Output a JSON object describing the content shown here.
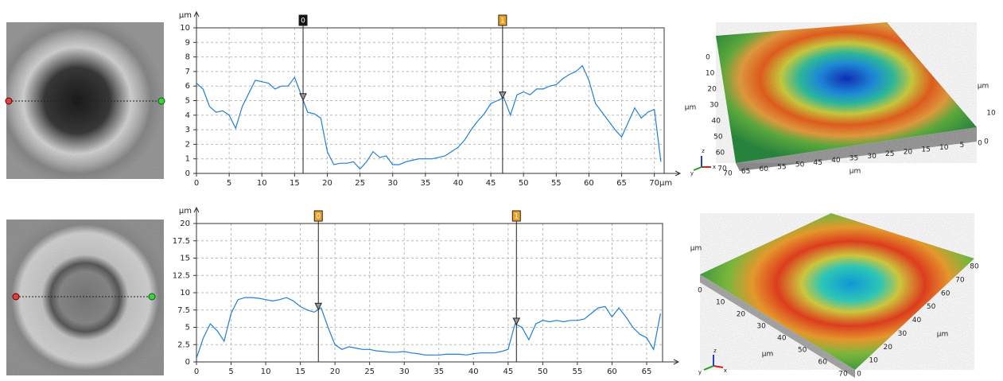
{
  "chart_data": [
    {
      "type": "line",
      "color": "#1f7fd6",
      "ylabel": "μm",
      "xlabel": "μm",
      "grid": true,
      "xlim": [
        0,
        71.5
      ],
      "ylim": [
        0,
        10
      ],
      "xticks": [
        0,
        5,
        10,
        15,
        20,
        25,
        30,
        35,
        40,
        45,
        50,
        55,
        60,
        65,
        70
      ],
      "yticks": [
        0,
        1,
        2,
        3,
        4,
        5,
        6,
        7,
        8,
        9,
        10
      ],
      "cursors": [
        {
          "label": "0",
          "x": 16.3,
          "color": "#111111"
        },
        {
          "label": "1",
          "x": 46.8,
          "color": "#f0a020"
        }
      ],
      "x": [
        0,
        1,
        2,
        3,
        4,
        5,
        6,
        7,
        8,
        9,
        10,
        11,
        12,
        13,
        14,
        15,
        16,
        17,
        18,
        19,
        20,
        21,
        22,
        23,
        24,
        25,
        26,
        27,
        28,
        29,
        30,
        31,
        32,
        33,
        34,
        35,
        36,
        37,
        38,
        39,
        40,
        41,
        42,
        43,
        44,
        45,
        46,
        47,
        48,
        49,
        50,
        51,
        52,
        53,
        54,
        55,
        56,
        57,
        58,
        59,
        60,
        61,
        62,
        63,
        64,
        65,
        66,
        67,
        68,
        69,
        70,
        71
      ],
      "values": [
        6.2,
        5.8,
        4.6,
        4.2,
        4.3,
        4.0,
        3.1,
        4.6,
        5.5,
        6.4,
        6.3,
        6.2,
        5.8,
        6.0,
        6.0,
        6.6,
        5.4,
        4.2,
        4.1,
        3.8,
        1.5,
        0.6,
        0.7,
        0.7,
        0.8,
        0.3,
        0.8,
        1.5,
        1.1,
        1.2,
        0.6,
        0.6,
        0.8,
        0.9,
        1.0,
        1.0,
        1.0,
        1.1,
        1.2,
        1.5,
        1.8,
        2.3,
        3.0,
        3.6,
        4.1,
        4.8,
        5.0,
        5.2,
        4.0,
        5.4,
        5.6,
        5.4,
        5.8,
        5.8,
        6.0,
        6.1,
        6.5,
        6.8,
        7.0,
        7.4,
        6.4,
        4.8,
        4.2,
        3.6,
        3.0,
        2.5,
        3.5,
        4.5,
        3.8,
        4.2,
        4.4,
        0.8
      ]
    },
    {
      "type": "line",
      "color": "#1f7fd6",
      "ylabel": "μm",
      "grid": true,
      "xlim": [
        0,
        67.3
      ],
      "ylim": [
        0,
        20
      ],
      "xticks": [
        0,
        5,
        10,
        15,
        20,
        25,
        30,
        35,
        40,
        45,
        50,
        55,
        60,
        65
      ],
      "yticks": [
        0,
        2.5,
        5,
        7.5,
        10,
        12.5,
        15,
        17.5,
        20
      ],
      "cursors": [
        {
          "label": "0",
          "x": 17.6,
          "color": "#f0a020"
        },
        {
          "label": "1",
          "x": 46.2,
          "color": "#f0a020"
        }
      ],
      "x": [
        0,
        1,
        2,
        3,
        4,
        5,
        6,
        7,
        8,
        9,
        10,
        11,
        12,
        13,
        14,
        15,
        16,
        17,
        18,
        19,
        20,
        21,
        22,
        23,
        24,
        25,
        26,
        27,
        28,
        29,
        30,
        31,
        32,
        33,
        34,
        35,
        36,
        37,
        38,
        39,
        40,
        41,
        42,
        43,
        44,
        45,
        46,
        47,
        48,
        49,
        50,
        51,
        52,
        53,
        54,
        55,
        56,
        57,
        58,
        59,
        60,
        61,
        62,
        63,
        64,
        65,
        66,
        67
      ],
      "values": [
        0.5,
        3.5,
        5.5,
        4.5,
        3.0,
        7.0,
        9.0,
        9.3,
        9.3,
        9.2,
        9.0,
        8.8,
        9.0,
        9.3,
        8.8,
        8.0,
        7.5,
        7.2,
        7.8,
        5.0,
        2.5,
        1.8,
        2.2,
        2.0,
        1.8,
        1.8,
        1.6,
        1.5,
        1.4,
        1.4,
        1.5,
        1.3,
        1.2,
        1.0,
        1.0,
        1.0,
        1.1,
        1.1,
        1.1,
        1.0,
        1.2,
        1.3,
        1.3,
        1.3,
        1.5,
        1.8,
        5.5,
        5.0,
        3.2,
        5.5,
        6.0,
        5.8,
        6.0,
        5.8,
        6.0,
        6.0,
        6.2,
        7.0,
        7.8,
        8.0,
        6.5,
        7.8,
        6.5,
        5.0,
        4.0,
        3.5,
        1.8,
        7.0
      ]
    }
  ],
  "surfaces": [
    {
      "y_ticks": [
        0,
        10,
        20,
        30,
        40,
        50,
        60,
        70
      ],
      "y_label": "μm",
      "x_ticks": [
        70,
        65,
        60,
        55,
        50,
        45,
        40,
        35,
        30,
        25,
        20,
        15,
        10,
        5,
        0
      ],
      "x_label": "μm",
      "z_ticks": [
        10,
        0
      ],
      "z_label": "μm",
      "triad": [
        "x",
        "y",
        "z"
      ]
    },
    {
      "x_ticks": [
        0,
        10,
        20,
        30,
        40,
        50,
        60,
        70
      ],
      "x_label": "μm",
      "y_ticks": [
        0,
        10,
        20,
        30,
        40,
        50,
        60,
        70,
        80
      ],
      "y_label": "μm",
      "z_label": "μm",
      "triad": [
        "x",
        "y",
        "z"
      ]
    }
  ]
}
